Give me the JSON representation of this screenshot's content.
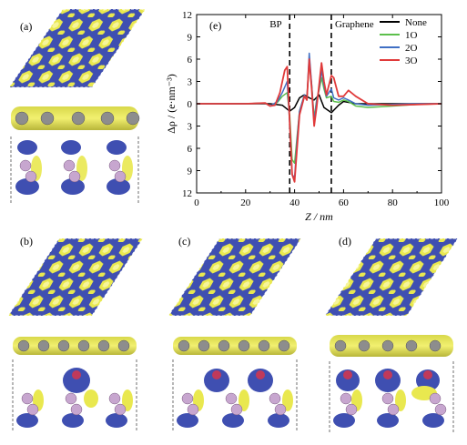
{
  "panels": {
    "a": "(a)",
    "b": "(b)",
    "c": "(c)",
    "d": "(d)",
    "e": "(e)"
  },
  "colors": {
    "accumulation": "#e9e84f",
    "depletion": "#3f4fb1",
    "carbon": "#8d8d8d",
    "phosphorus": "#c7a6cf",
    "oxygen": "#c0395a"
  },
  "chart_data": {
    "type": "line",
    "panel_label": "(e)",
    "xlabel": "Z / nm",
    "ylabel": "Δρ / (e·nm⁻³)",
    "xlim": [
      0,
      100
    ],
    "ylim": [
      -12,
      12
    ],
    "xticks": [
      0,
      20,
      40,
      60,
      80,
      100
    ],
    "yticks": [
      12,
      9,
      6,
      3,
      0,
      -3,
      -6,
      -9,
      -12
    ],
    "ytick_labels": [
      "12",
      "9",
      "6",
      "3",
      "0",
      "3",
      "6",
      "9",
      "12"
    ],
    "grid": false,
    "legend_position": "top-right",
    "annotations": [
      {
        "text": "BP",
        "x": 38
      },
      {
        "text": "Graphene",
        "x": 55
      }
    ],
    "series": [
      {
        "name": "None",
        "color": "#000000",
        "width": 1.5,
        "x": [
          0,
          20,
          30,
          35,
          38,
          40,
          42,
          44,
          46,
          48,
          50,
          52,
          55,
          58,
          60,
          65,
          70,
          80,
          100
        ],
        "y": [
          0,
          0,
          0,
          -0.2,
          -1.0,
          -0.5,
          0.8,
          1.2,
          0.8,
          0.5,
          1.2,
          -0.5,
          -1.2,
          -0.2,
          0.3,
          0,
          0,
          0,
          0
        ]
      },
      {
        "name": "1O",
        "color": "#5cbf4b",
        "width": 1.5,
        "x": [
          0,
          20,
          28,
          30,
          33,
          35,
          37,
          38,
          39,
          40,
          42,
          44,
          45,
          46,
          47,
          48,
          49,
          50,
          51,
          52,
          53,
          55,
          56,
          58,
          60,
          62,
          65,
          70,
          80,
          90,
          100
        ],
        "y": [
          0,
          0,
          0.1,
          -0.3,
          0.2,
          1.0,
          1.5,
          -1.5,
          -7.5,
          -8.0,
          -1.0,
          1.2,
          0.5,
          5.8,
          2.5,
          -2.0,
          0.5,
          1.8,
          3.5,
          2.0,
          0.8,
          1.0,
          0.3,
          0.2,
          0.5,
          0.3,
          -0.3,
          -0.5,
          -0.3,
          -0.1,
          0
        ]
      },
      {
        "name": "2O",
        "color": "#3f6fc4",
        "width": 1.5,
        "x": [
          0,
          20,
          28,
          30,
          33,
          35,
          37,
          38,
          39,
          40,
          41,
          42,
          44,
          45,
          46,
          47,
          48,
          49,
          50,
          51,
          52,
          53,
          55,
          56,
          58,
          60,
          62,
          65,
          70,
          80,
          90,
          100
        ],
        "y": [
          0,
          0,
          0.1,
          -0.3,
          0.3,
          1.5,
          3.0,
          -2.5,
          -9.5,
          -10.0,
          -5.0,
          -1.0,
          1.2,
          0.5,
          6.8,
          2.5,
          -2.5,
          0.3,
          2.0,
          4.5,
          2.5,
          1.0,
          2.0,
          0.8,
          0.5,
          0.8,
          0.5,
          0,
          -0.2,
          -0.1,
          0,
          0
        ]
      },
      {
        "name": "3O",
        "color": "#e03a3a",
        "width": 1.8,
        "x": [
          0,
          20,
          28,
          30,
          32,
          34,
          36,
          37,
          38,
          39,
          40,
          41,
          42,
          44,
          45,
          46,
          47,
          48,
          49,
          50,
          51,
          52,
          53,
          55,
          56,
          58,
          60,
          62,
          65,
          70,
          80,
          90,
          100
        ],
        "y": [
          0,
          0,
          0.1,
          -0.3,
          -0.2,
          1.5,
          4.5,
          5.0,
          -2.5,
          -9.5,
          -10.5,
          -6.0,
          -1.5,
          1.0,
          0.5,
          6.0,
          2.0,
          -3.0,
          -0.5,
          2.5,
          5.5,
          3.0,
          1.2,
          3.8,
          3.5,
          1.0,
          1.0,
          1.8,
          1.0,
          0,
          -0.2,
          -0.1,
          0
        ]
      }
    ]
  }
}
